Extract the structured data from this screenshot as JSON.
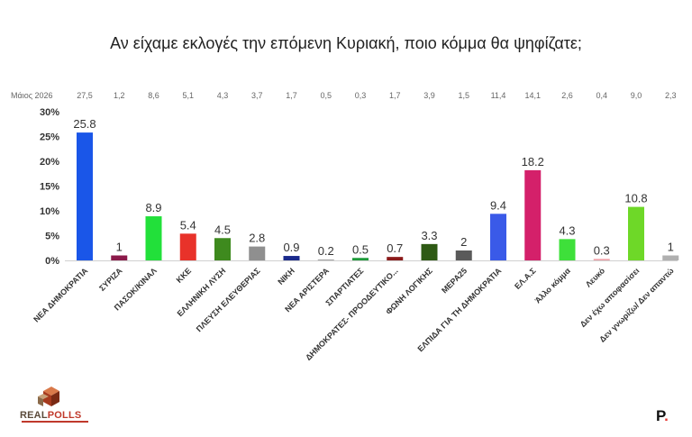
{
  "chart_data": {
    "type": "bar",
    "title": "Αν είχαμε εκλογές την επόμενη Κυριακή, ποιο κόμμα θα ψηφίζατε;",
    "comparison_label": "Μάιος 2026",
    "categories": [
      "ΝΕΑ ΔΗΜΟΚΡΑΤΙΑ",
      "ΣΥΡΙΖΑ",
      "ΠΑΣΟΚ/ΚΙΝΑΛ",
      "ΚΚΕ",
      "ΕΛΛΗΝΙΚΗ ΛΥΣΗ",
      "ΠΛΕΥΣΗ ΕΛΕΥΘΕΡΙΑΣ",
      "ΝΙΚΗ",
      "ΝΕΑ ΑΡΙΣΤΕΡΑ",
      "ΣΠΑΡΤΙΑΤΕΣ",
      "ΔΗΜΟΚΡΑΤΕΣ- ΠΡΟΟΔΕΥΤΙΚΟ...",
      "ΦΩΝΗ ΛΟΓΙΚΗΣ",
      "ΜΕΡΑ25",
      "ΕΛΠΙΔΑ ΓΙΑ ΤΗ ΔΗΜΟΚΡΑΤΙΑ",
      "ΕΛ.Α.Σ",
      "Άλλο κόμμα",
      "Λευκό",
      "Δεν έχω αποφασίσει",
      "Δεν γνωρίζω/ Δεν απαντώ"
    ],
    "values": [
      25.8,
      1,
      8.9,
      5.4,
      4.5,
      2.8,
      0.9,
      0.2,
      0.5,
      0.7,
      3.3,
      2,
      9.4,
      18.2,
      4.3,
      0.3,
      10.8,
      1
    ],
    "value_labels": [
      "25.8",
      "1",
      "8.9",
      "5.4",
      "4.5",
      "2.8",
      "0.9",
      "0.2",
      "0.5",
      "0.7",
      "3.3",
      "2",
      "9.4",
      "18.2",
      "4.3",
      "0.3",
      "10.8",
      "1"
    ],
    "comparison_values": [
      "27,5",
      "1,2",
      "8,6",
      "5,1",
      "4,3",
      "3,7",
      "1,7",
      "0,5",
      "0,3",
      "1,7",
      "3,9",
      "1,5",
      "11,4",
      "14,1",
      "2,6",
      "0,4",
      "9,0",
      "2,3"
    ],
    "colors": [
      "#1a56e8",
      "#8b1a4a",
      "#22e03a",
      "#e8322a",
      "#3e8a1e",
      "#8f8f8f",
      "#1a2a8c",
      "#a8a8a8",
      "#1e9a3a",
      "#8b1a1a",
      "#2e5a14",
      "#5a5a5a",
      "#3a5ae8",
      "#d4206a",
      "#3ee03a",
      "#f0a0a8",
      "#6ed828",
      "#b0b0b0"
    ],
    "yticks": [
      "0%",
      "5%",
      "10%",
      "15%",
      "20%",
      "25%",
      "30%"
    ],
    "ylim": [
      0,
      30
    ],
    "grid": false,
    "legend": "none"
  },
  "branding": {
    "logo_text_real": "REAL",
    "logo_text_polls": "POLLS",
    "brand_mark": "P",
    "brand_mark_dot": "."
  }
}
